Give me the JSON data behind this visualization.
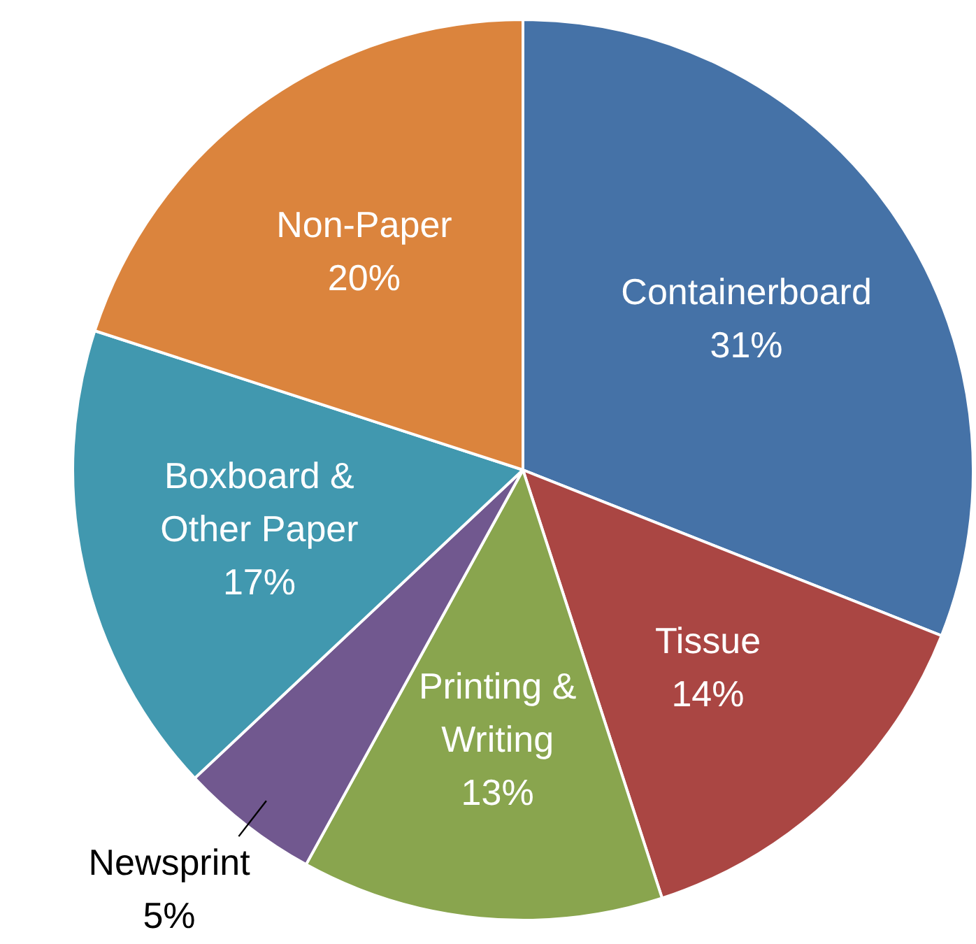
{
  "chart_data": {
    "type": "pie",
    "categories": [
      "Containerboard",
      "Tissue",
      "Printing & Writing",
      "Newsprint",
      "Boxboard & Other Paper",
      "Non-Paper"
    ],
    "values": [
      31,
      14,
      13,
      5,
      17,
      20
    ],
    "colors": [
      "#4572a7",
      "#aa4643",
      "#89a54e",
      "#71588f",
      "#4198af",
      "#db843d"
    ],
    "value_labels": [
      "31%",
      "14%",
      "13%",
      "5%",
      "17%",
      "20%"
    ]
  }
}
